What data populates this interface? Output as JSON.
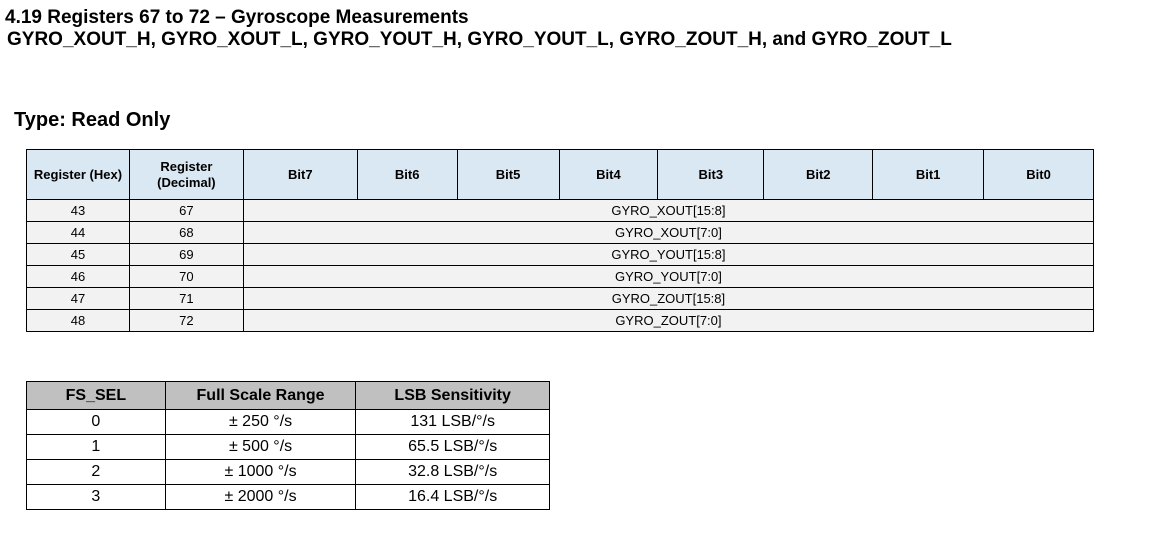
{
  "section": {
    "title": "4.19   Registers 67 to 72 – Gyroscope Measurements",
    "registers_line": "GYRO_XOUT_H,  GYRO_XOUT_L,  GYRO_YOUT_H,  GYRO_YOUT_L,  GYRO_ZOUT_H,  and GYRO_ZOUT_L",
    "type": "Type: Read Only"
  },
  "register_table": {
    "headers": {
      "hex": "Register (Hex)",
      "decimal": "Register (Decimal)",
      "bits": [
        "Bit7",
        "Bit6",
        "Bit5",
        "Bit4",
        "Bit3",
        "Bit2",
        "Bit1",
        "Bit0"
      ]
    },
    "rows": [
      {
        "hex": "43",
        "dec": "67",
        "field": "GYRO_XOUT[15:8]"
      },
      {
        "hex": "44",
        "dec": "68",
        "field": "GYRO_XOUT[7:0]"
      },
      {
        "hex": "45",
        "dec": "69",
        "field": "GYRO_YOUT[15:8]"
      },
      {
        "hex": "46",
        "dec": "70",
        "field": "GYRO_YOUT[7:0]"
      },
      {
        "hex": "47",
        "dec": "71",
        "field": "GYRO_ZOUT[15:8]"
      },
      {
        "hex": "48",
        "dec": "72",
        "field": "GYRO_ZOUT[7:0]"
      }
    ]
  },
  "fs_table": {
    "headers": [
      "FS_SEL",
      "Full Scale Range",
      "LSB Sensitivity"
    ],
    "rows": [
      {
        "fs_sel": "0",
        "range": "± 250 °/s",
        "sensitivity": "131 LSB/°/s"
      },
      {
        "fs_sel": "1",
        "range": "± 500 °/s",
        "sensitivity": "65.5 LSB/°/s"
      },
      {
        "fs_sel": "2",
        "range": "± 1000 °/s",
        "sensitivity": "32.8 LSB/°/s"
      },
      {
        "fs_sel": "3",
        "range": "± 2000 °/s",
        "sensitivity": "16.4 LSB/°/s"
      }
    ]
  },
  "colors": {
    "register_header_bg": "#dae8f3",
    "register_row_bg": "#f2f2f2",
    "fs_header_bg": "#c0c0c0"
  }
}
